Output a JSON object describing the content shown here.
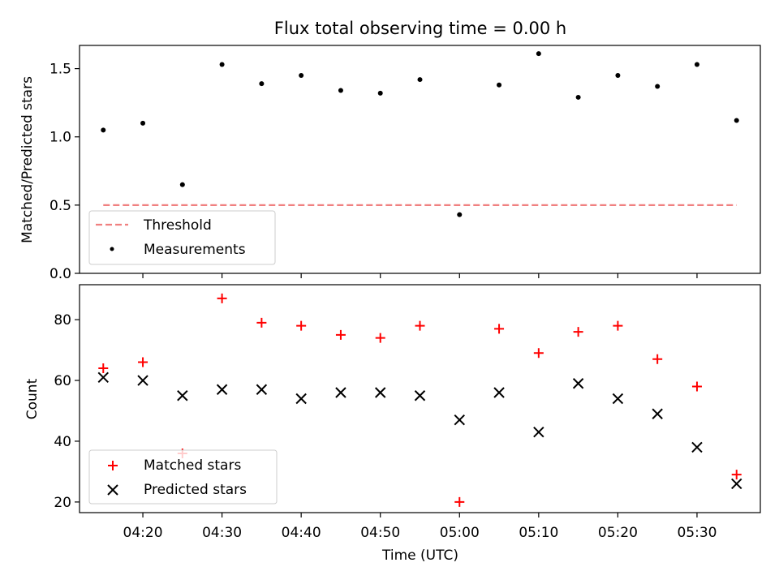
{
  "chart_data": [
    {
      "type": "scatter",
      "title": "Flux total observing time = 0.00 h",
      "xlabel": "",
      "ylabel": "Matched/Predicted stars",
      "ylim": [
        0,
        1.67
      ],
      "yticks": [
        "0.0",
        "0.5",
        "1.0",
        "1.5"
      ],
      "grid": false,
      "legend_position": "lower-left",
      "x": [
        "04:15",
        "04:20",
        "04:25",
        "04:30",
        "04:35",
        "04:40",
        "04:45",
        "04:50",
        "04:55",
        "05:00",
        "05:05",
        "05:10",
        "05:15",
        "05:20",
        "05:25",
        "05:30",
        "05:35"
      ],
      "series": [
        {
          "name": "Threshold",
          "style": "dashed-line",
          "color": "#f08080",
          "values": [
            0.5,
            0.5
          ]
        },
        {
          "name": "Measurements",
          "style": "dot",
          "color": "#000000",
          "values": [
            1.05,
            1.1,
            0.65,
            1.53,
            1.39,
            1.45,
            1.34,
            1.32,
            1.42,
            0.43,
            1.38,
            1.61,
            1.29,
            1.45,
            1.37,
            1.53,
            1.12
          ]
        }
      ]
    },
    {
      "type": "scatter",
      "title": "",
      "xlabel": "Time (UTC)",
      "ylabel": "Count",
      "ylim": [
        16.5,
        91.5
      ],
      "yticks": [
        "20",
        "40",
        "60",
        "80"
      ],
      "xticks": [
        "04:20",
        "04:30",
        "04:40",
        "04:50",
        "05:00",
        "05:10",
        "05:20",
        "05:30"
      ],
      "grid": false,
      "legend_position": "lower-left",
      "x": [
        "04:15",
        "04:20",
        "04:25",
        "04:30",
        "04:35",
        "04:40",
        "04:45",
        "04:50",
        "04:55",
        "05:00",
        "05:05",
        "05:10",
        "05:15",
        "05:20",
        "05:25",
        "05:30",
        "05:35"
      ],
      "series": [
        {
          "name": "Matched stars",
          "marker": "+",
          "color": "#ff0000",
          "values": [
            64,
            66,
            36,
            87,
            79,
            78,
            75,
            74,
            78,
            20,
            77,
            69,
            76,
            78,
            67,
            58,
            29
          ]
        },
        {
          "name": "Predicted stars",
          "marker": "x",
          "color": "#000000",
          "values": [
            61,
            60,
            55,
            57,
            57,
            54,
            56,
            56,
            55,
            47,
            56,
            43,
            59,
            54,
            49,
            38,
            26
          ]
        }
      ]
    }
  ]
}
